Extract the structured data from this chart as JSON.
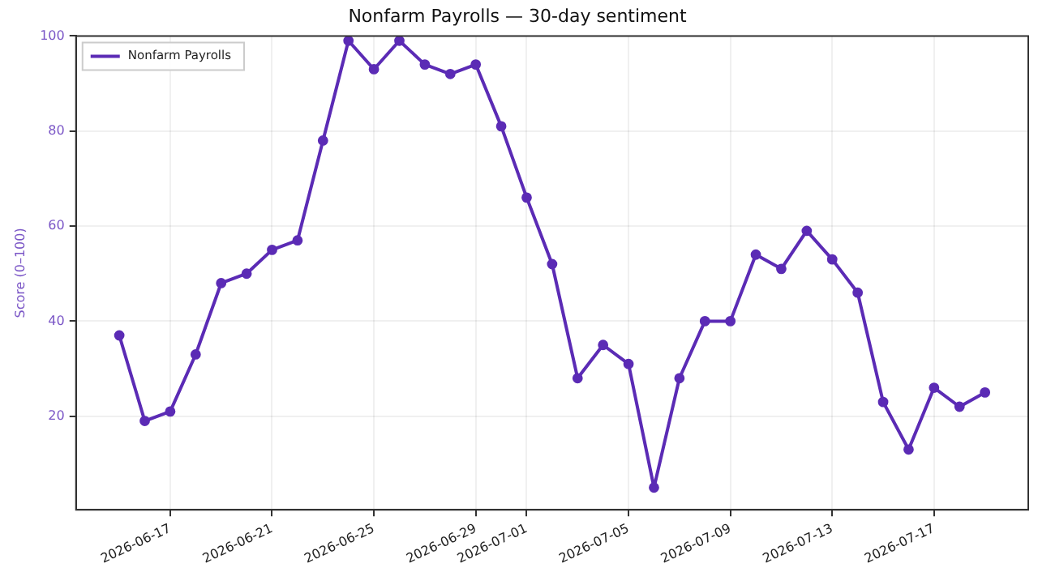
{
  "chart_data": {
    "type": "line",
    "title": "Nonfarm Payrolls — 30-day sentiment",
    "ylabel": "Score (0–100)",
    "x": [
      "2026-06-15",
      "2026-06-16",
      "2026-06-17",
      "2026-06-18",
      "2026-06-19",
      "2026-06-20",
      "2026-06-21",
      "2026-06-22",
      "2026-06-23",
      "2026-06-24",
      "2026-06-25",
      "2026-06-26",
      "2026-06-27",
      "2026-06-28",
      "2026-06-29",
      "2026-06-30",
      "2026-07-01",
      "2026-07-02",
      "2026-07-03",
      "2026-07-04",
      "2026-07-05",
      "2026-07-06",
      "2026-07-07",
      "2026-07-08",
      "2026-07-09",
      "2026-07-10",
      "2026-07-11",
      "2026-07-12",
      "2026-07-13",
      "2026-07-14",
      "2026-07-15",
      "2026-07-16",
      "2026-07-17",
      "2026-07-18",
      "2026-07-19"
    ],
    "series": [
      {
        "name": "Nonfarm Payrolls",
        "color": "#5b2bb5",
        "values": [
          37,
          19,
          21,
          33,
          48,
          50,
          55,
          57,
          78,
          99,
          93,
          99,
          94,
          92,
          94,
          81,
          66,
          52,
          28,
          35,
          31,
          5,
          28,
          40,
          40,
          54,
          51,
          59,
          53,
          46,
          23,
          13,
          26,
          22,
          25
        ]
      }
    ],
    "xlim": [
      "2026-06-13T07:12",
      "2026-07-20T16:48"
    ],
    "xticks": [
      "2026-06-17",
      "2026-06-21",
      "2026-06-25",
      "2026-06-29",
      "2026-07-01",
      "2026-07-05",
      "2026-07-09",
      "2026-07-13",
      "2026-07-17"
    ],
    "ylim": [
      0.3,
      100
    ],
    "yticks": [
      20,
      40,
      60,
      80,
      100
    ],
    "grid": true,
    "legend": "top left",
    "marker": "circle",
    "line_style": "solid"
  }
}
